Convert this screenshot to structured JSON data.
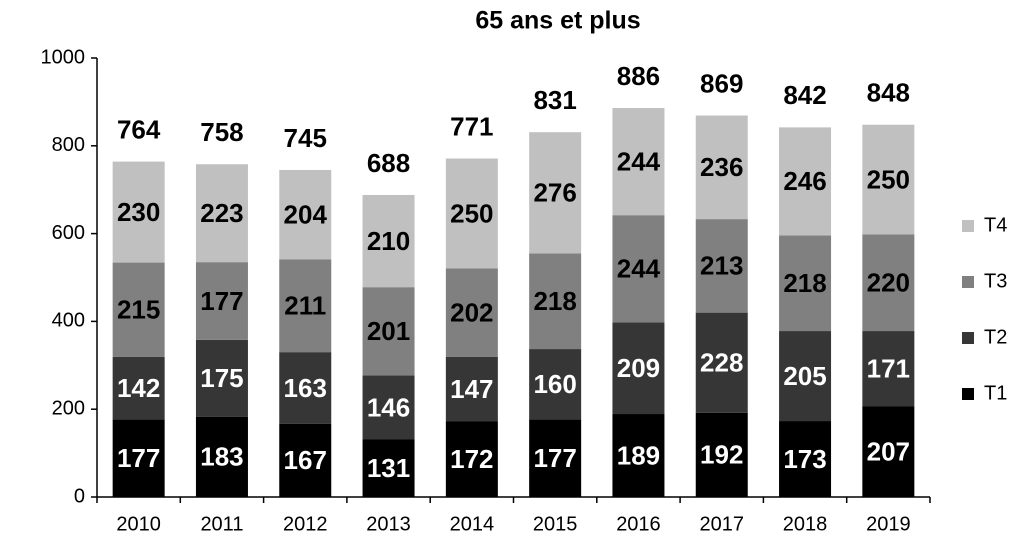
{
  "chart_data": {
    "type": "stacked_bar",
    "title": "65 ans et plus",
    "categories": [
      "2010",
      "2011",
      "2012",
      "2013",
      "2014",
      "2015",
      "2016",
      "2017",
      "2018",
      "2019"
    ],
    "series": [
      {
        "name": "T1",
        "color": "#000000",
        "values": [
          177,
          183,
          167,
          131,
          172,
          177,
          189,
          192,
          173,
          207
        ]
      },
      {
        "name": "T2",
        "color": "#363636",
        "values": [
          142,
          175,
          163,
          146,
          147,
          160,
          209,
          228,
          205,
          171
        ]
      },
      {
        "name": "T3",
        "color": "#808080",
        "values": [
          215,
          177,
          211,
          201,
          202,
          218,
          244,
          213,
          218,
          220
        ]
      },
      {
        "name": "T4",
        "color": "#c0c0c0",
        "values": [
          230,
          223,
          204,
          210,
          250,
          276,
          244,
          236,
          246,
          250
        ]
      }
    ],
    "totals": [
      764,
      758,
      745,
      688,
      771,
      831,
      886,
      869,
      842,
      848
    ],
    "ylim": [
      0,
      1000
    ],
    "yticks": [
      0,
      200,
      400,
      600,
      800,
      1000
    ],
    "legend": "right"
  }
}
